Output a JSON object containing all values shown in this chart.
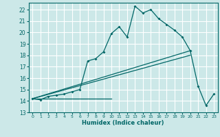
{
  "xlabel": "Humidex (Indice chaleur)",
  "background_color": "#cce8e8",
  "grid_color": "#ffffff",
  "line_color": "#006666",
  "xlim": [
    -0.5,
    23.5
  ],
  "ylim": [
    13.0,
    22.6
  ],
  "xticks": [
    0,
    1,
    2,
    3,
    4,
    5,
    6,
    7,
    8,
    9,
    10,
    11,
    12,
    13,
    14,
    15,
    16,
    17,
    18,
    19,
    20,
    21,
    22,
    23
  ],
  "yticks": [
    13,
    14,
    15,
    16,
    17,
    18,
    19,
    20,
    21,
    22
  ],
  "ytick_labels": [
    "13",
    "14",
    "15",
    "16",
    "17",
    "18",
    "19",
    "20",
    "21",
    "22"
  ],
  "line1_x": [
    0,
    1,
    2,
    3,
    4,
    5,
    6,
    7,
    8,
    9,
    10,
    11,
    12,
    13,
    14,
    15,
    16,
    17,
    18,
    19,
    20,
    21,
    22,
    23
  ],
  "line1_y": [
    14.2,
    14.1,
    14.4,
    14.5,
    14.6,
    14.8,
    15.0,
    17.5,
    17.7,
    18.3,
    19.9,
    20.5,
    19.6,
    22.3,
    21.7,
    22.0,
    21.2,
    20.7,
    20.2,
    19.6,
    18.4,
    15.3,
    13.6,
    14.6
  ],
  "line2_x": [
    0,
    20
  ],
  "line2_y": [
    14.2,
    18.4
  ],
  "line3_x": [
    0,
    20
  ],
  "line3_y": [
    14.2,
    18.0
  ],
  "line4_x": [
    0,
    10
  ],
  "line4_y": [
    14.2,
    14.2
  ]
}
